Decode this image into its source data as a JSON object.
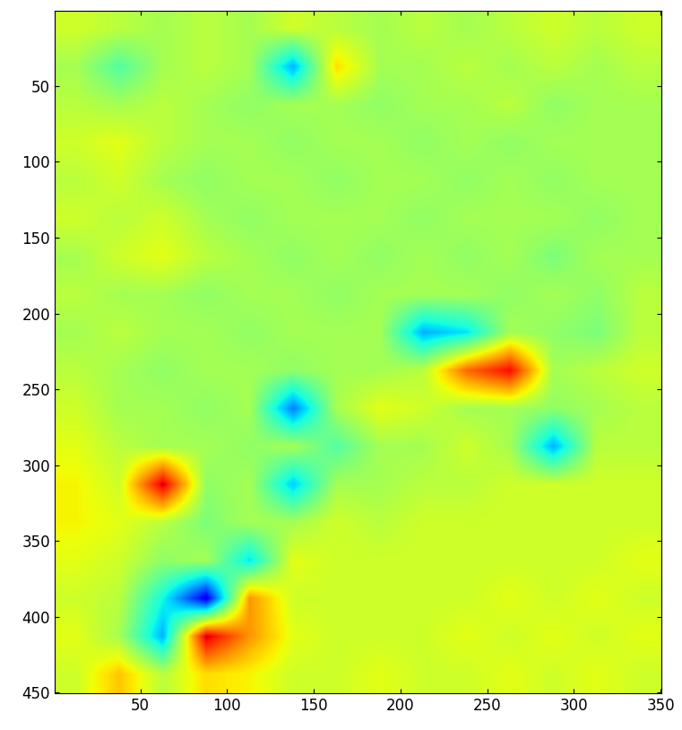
{
  "chart_data": {
    "type": "heatmap",
    "xlim": [
      0.5,
      350.5
    ],
    "ylim": [
      450.5,
      0.5
    ],
    "xticks": [
      50,
      100,
      150,
      200,
      250,
      300,
      350
    ],
    "yticks": [
      50,
      100,
      150,
      200,
      250,
      300,
      350,
      400,
      450
    ],
    "vlim": [
      -1,
      1
    ],
    "cells": [
      [
        0.2,
        0.15,
        0.1,
        0.15,
        0.1,
        0.2,
        0.15,
        0.1,
        0.15,
        0.1,
        0.15,
        0.2,
        0.15,
        0.2
      ],
      [
        0.1,
        -0.1,
        0.1,
        0.15,
        0.1,
        -0.4,
        0.35,
        0.1,
        0.1,
        0.15,
        0.1,
        0.15,
        0.1,
        0.15
      ],
      [
        0.15,
        0.1,
        0.15,
        0.1,
        0.05,
        0.1,
        0.1,
        0.05,
        0.1,
        0.1,
        0.15,
        0.05,
        0.1,
        0.1
      ],
      [
        0.2,
        0.25,
        0.15,
        0.1,
        0.1,
        0.05,
        0.1,
        0.1,
        0.05,
        0.1,
        0.05,
        0.1,
        0.1,
        0.1
      ],
      [
        0.15,
        0.2,
        0.1,
        0.05,
        0.1,
        0.1,
        0.05,
        0.1,
        0.1,
        0.05,
        0.1,
        0.05,
        0.1,
        0.1
      ],
      [
        0.2,
        0.15,
        0.2,
        0.1,
        0.05,
        0.1,
        0.1,
        0.1,
        0.05,
        0.1,
        0.1,
        0.1,
        0.05,
        0.1
      ],
      [
        0.1,
        0.2,
        0.25,
        0.15,
        0.1,
        0.05,
        0.1,
        0.05,
        0.1,
        0.05,
        0.1,
        0.0,
        0.1,
        0.1
      ],
      [
        0.15,
        0.1,
        0.1,
        0.05,
        0.1,
        0.1,
        0.05,
        0.1,
        0.1,
        0.1,
        0.05,
        0.1,
        0.05,
        0.15
      ],
      [
        0.1,
        0.15,
        0.1,
        0.1,
        0.05,
        0.1,
        0.1,
        0.1,
        -0.4,
        -0.3,
        0.1,
        0.05,
        0.0,
        0.15
      ],
      [
        0.15,
        0.1,
        0.05,
        0.1,
        0.1,
        0.05,
        0.1,
        0.1,
        0.15,
        0.6,
        0.8,
        0.1,
        0.15,
        0.2
      ],
      [
        0.2,
        0.1,
        0.1,
        0.05,
        0.1,
        -0.5,
        0.1,
        0.25,
        0.2,
        0.1,
        0.1,
        0.05,
        0.1,
        0.15
      ],
      [
        0.25,
        0.15,
        0.1,
        0.1,
        0.05,
        0.1,
        -0.1,
        0.1,
        0.1,
        0.2,
        0.1,
        -0.4,
        0.15,
        0.15
      ],
      [
        0.3,
        0.2,
        0.85,
        0.05,
        0.1,
        -0.35,
        0.1,
        0.1,
        0.15,
        0.15,
        0.2,
        0.2,
        0.2,
        0.2
      ],
      [
        0.3,
        0.25,
        0.15,
        0.0,
        0.1,
        0.1,
        0.2,
        0.15,
        0.2,
        0.2,
        0.2,
        0.2,
        0.2,
        0.2
      ],
      [
        0.25,
        0.2,
        0.05,
        0.1,
        -0.3,
        0.25,
        0.2,
        0.2,
        0.2,
        0.2,
        0.2,
        0.2,
        0.2,
        0.25
      ],
      [
        0.2,
        0.15,
        -0.25,
        -0.8,
        0.5,
        0.2,
        0.2,
        0.2,
        0.2,
        0.2,
        0.25,
        0.2,
        0.25,
        0.2
      ],
      [
        0.25,
        0.1,
        -0.4,
        0.85,
        0.5,
        0.25,
        0.2,
        0.2,
        0.2,
        0.25,
        0.2,
        0.25,
        0.2,
        0.25
      ],
      [
        0.2,
        0.4,
        0.15,
        0.35,
        0.3,
        0.2,
        0.2,
        0.25,
        0.2,
        0.2,
        0.25,
        0.2,
        0.25,
        0.2
      ]
    ]
  }
}
